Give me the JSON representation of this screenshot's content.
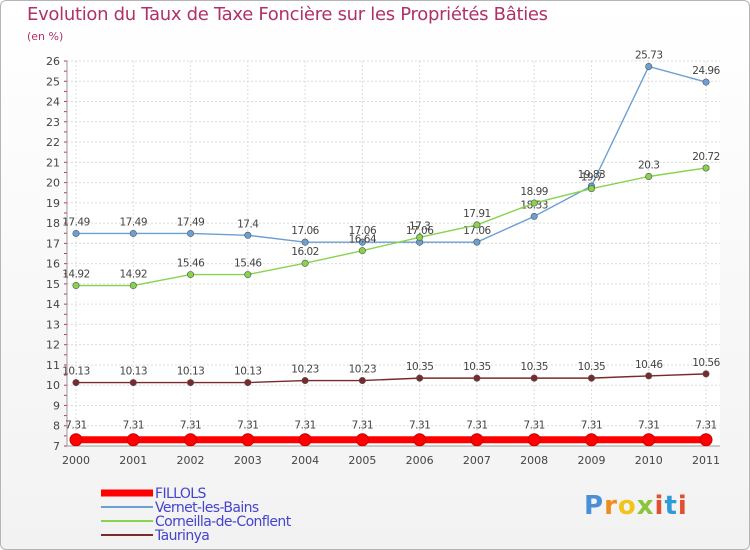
{
  "chart_data": {
    "type": "line",
    "title": "Evolution du Taux de Taxe Foncière sur les Propriétés Bâties",
    "subtitle": "(en %)",
    "categories": [
      "2000",
      "2001",
      "2002",
      "2003",
      "2004",
      "2005",
      "2006",
      "2007",
      "2008",
      "2009",
      "2010",
      "2011"
    ],
    "ylim": [
      7,
      26
    ],
    "yticks": [
      "7",
      "8",
      "9",
      "10",
      "11",
      "12",
      "13",
      "14",
      "15",
      "16",
      "17",
      "18",
      "19",
      "20",
      "21",
      "22",
      "23",
      "24",
      "25",
      "26"
    ],
    "grid": true,
    "legend_position": "bottom-left",
    "series": [
      {
        "name": "FILLOLS",
        "color": "#ff0000",
        "values": [
          7.31,
          7.31,
          7.31,
          7.31,
          7.31,
          7.31,
          7.31,
          7.31,
          7.31,
          7.31,
          7.31,
          7.31
        ],
        "labels": [
          "7.31",
          "7.31",
          "7.31",
          "7.31",
          "7.31",
          "7.31",
          "7.31",
          "7.31",
          "7.31",
          "7.31",
          "7.31",
          "7.31"
        ]
      },
      {
        "name": "Vernet-les-Bains",
        "color": "#6aa0d4",
        "values": [
          17.49,
          17.49,
          17.49,
          17.4,
          17.06,
          17.06,
          17.06,
          17.06,
          18.33,
          19.83,
          25.73,
          24.96
        ],
        "labels": [
          "17.49",
          "17.49",
          "17.49",
          "17.4",
          "17.06",
          "17.06",
          "17.06",
          "17.06",
          "18.33",
          "19.83",
          "25.73",
          "24.96"
        ]
      },
      {
        "name": "Corneilla-de-Conflent",
        "color": "#88d34e",
        "values": [
          14.92,
          14.92,
          15.46,
          15.46,
          16.02,
          16.64,
          17.3,
          17.91,
          18.99,
          19.7,
          20.3,
          20.72
        ],
        "labels": [
          "14.92",
          "14.92",
          "15.46",
          "15.46",
          "16.02",
          "16.64",
          "17.3",
          "17.91",
          "18.99",
          "19.7",
          "20.3",
          "20.72"
        ]
      },
      {
        "name": "Taurinya",
        "color": "#7a2a2a",
        "values": [
          10.13,
          10.13,
          10.13,
          10.13,
          10.23,
          10.23,
          10.35,
          10.35,
          10.35,
          10.35,
          10.46,
          10.56
        ],
        "labels": [
          "10.13",
          "10.13",
          "10.13",
          "10.13",
          "10.23",
          "10.23",
          "10.35",
          "10.35",
          "10.35",
          "10.35",
          "10.46",
          "10.56"
        ]
      }
    ]
  },
  "logo": {
    "p": "P",
    "r": "r",
    "o": "o",
    "x": "x",
    "i": "i",
    "t": "t",
    "i2": "i"
  }
}
